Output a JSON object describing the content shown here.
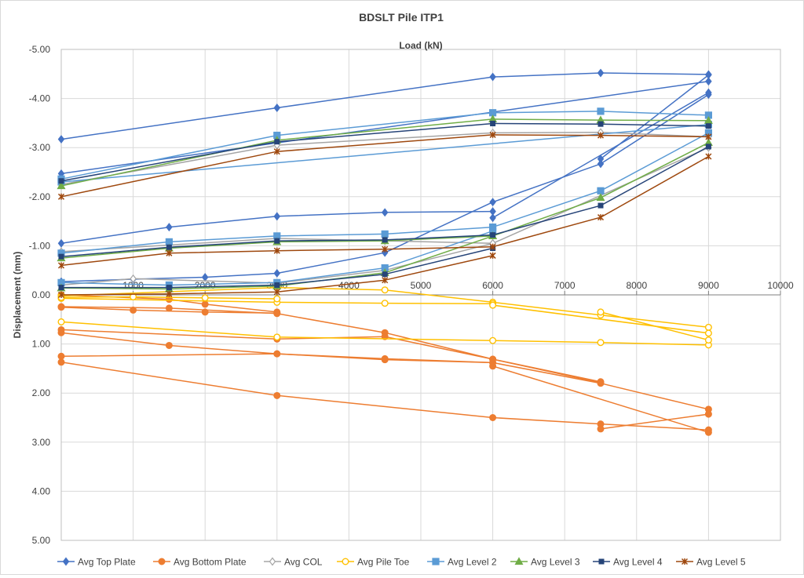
{
  "chart_data": {
    "type": "line",
    "title": "BDSLT Pile ITP1",
    "xlabel": "Load (kN)",
    "ylabel": "Displacement (mm)",
    "xlim": [
      0,
      10000
    ],
    "ylim": [
      5,
      -5
    ],
    "y_axis_reversed": true,
    "x_axis_position": "top, crossing at displacement 0",
    "x_ticks": [
      0,
      1000,
      2000,
      3000,
      4000,
      5000,
      6000,
      7000,
      8000,
      9000,
      10000
    ],
    "x_tick_labels": [
      "0",
      "1000",
      "2000",
      "3000",
      "4000",
      "5000",
      "6000",
      "7000",
      "8000",
      "9000",
      "10000"
    ],
    "y_ticks": [
      -5,
      -4,
      -3,
      -2,
      -1,
      0,
      1,
      2,
      3,
      4,
      5
    ],
    "y_tick_labels": [
      "-5.00",
      "-4.00",
      "-3.00",
      "-2.00",
      "-1.00",
      "0.00",
      "1.00",
      "2.00",
      "3.00",
      "4.00",
      "5.00"
    ],
    "grid": true,
    "legend_position": "bottom",
    "series": [
      {
        "name": "Avg Top Plate",
        "color": "#4472c4",
        "marker": "diamond",
        "filled": true,
        "lines": [
          {
            "x": [
              0,
              3000,
              6000,
              7500,
              9000
            ],
            "y": [
              -3.17,
              -3.81,
              -4.44,
              -4.52,
              -4.49
            ]
          },
          {
            "x": [
              0,
              1500,
              3000,
              4500,
              6000
            ],
            "y": [
              -1.05,
              -1.38,
              -1.6,
              -1.68,
              -1.7
            ]
          },
          {
            "x": [
              0,
              1000,
              2000,
              3000,
              4500,
              6000,
              7500,
              9000
            ],
            "y": [
              -0.27,
              -0.32,
              -0.36,
              -0.44,
              -0.86,
              -1.89,
              -2.67,
              -4.08
            ]
          },
          {
            "x": [
              0,
              9000
            ],
            "y": [
              -2.47,
              -4.35
            ]
          },
          {
            "x": [
              6000,
              9000
            ],
            "y": [
              -1.57,
              -4.12
            ]
          },
          {
            "x": [
              7500,
              9000
            ],
            "y": [
              -2.77,
              -4.48
            ]
          }
        ]
      },
      {
        "name": "Avg Bottom Plate",
        "color": "#ed7d31",
        "marker": "circle",
        "filled": true,
        "lines": [
          {
            "x": [
              0,
              3000,
              6000,
              7500,
              9000
            ],
            "y": [
              1.37,
              2.05,
              2.5,
              2.63,
              2.75
            ]
          },
          {
            "x": [
              0,
              3000,
              4500,
              6000,
              7500,
              9000
            ],
            "y": [
              1.25,
              1.2,
              1.3,
              1.38,
              1.8,
              2.33
            ]
          },
          {
            "x": [
              0,
              1500,
              3000,
              4500,
              6000
            ],
            "y": [
              0.77,
              1.03,
              1.2,
              1.32,
              1.38
            ]
          },
          {
            "x": [
              0,
              3000,
              4500,
              6000,
              7500
            ],
            "y": [
              0.71,
              0.9,
              0.85,
              1.31,
              1.77
            ]
          },
          {
            "x": [
              0,
              1500,
              3000,
              4500,
              6000,
              7500
            ],
            "y": [
              0.24,
              0.27,
              0.38,
              0.77,
              1.31,
              1.79
            ]
          },
          {
            "x": [
              0,
              1000,
              2000,
              3000
            ],
            "y": [
              0.25,
              0.31,
              0.35,
              0.37
            ]
          },
          {
            "x": [
              0,
              1500,
              2000,
              3000
            ],
            "y": [
              0.0,
              0.09,
              0.19,
              0.35
            ]
          },
          {
            "x": [
              6000,
              9000
            ],
            "y": [
              1.45,
              2.8
            ]
          },
          {
            "x": [
              7500,
              9000
            ],
            "y": [
              2.73,
              2.43
            ]
          }
        ]
      },
      {
        "name": "Avg COL",
        "color": "#a5a5a5",
        "marker": "diamond",
        "filled": false,
        "lines": [
          {
            "x": [
              0,
              3000,
              6000,
              7500,
              9000
            ],
            "y": [
              -2.25,
              -3.05,
              -3.3,
              -3.31,
              -3.22
            ]
          },
          {
            "x": [
              0,
              3000,
              4500,
              6000,
              9000
            ],
            "y": [
              -0.88,
              -1.15,
              -1.1,
              -1.05,
              -3.0
            ]
          },
          {
            "x": [
              0,
              1000,
              3000,
              4500,
              6000
            ],
            "y": [
              -0.2,
              -0.33,
              -0.24,
              -0.5,
              -1.05
            ]
          }
        ]
      },
      {
        "name": "Avg Pile Toe",
        "color": "#ffc000",
        "marker": "circle",
        "filled": false,
        "lines": [
          {
            "x": [
              0,
              3000,
              6000,
              7500,
              9000
            ],
            "y": [
              0.55,
              0.86,
              0.93,
              0.97,
              1.02
            ]
          },
          {
            "x": [
              0,
              3000,
              4500,
              6000,
              7500,
              9000
            ],
            "y": [
              0.02,
              -0.15,
              -0.1,
              0.15,
              0.41,
              0.66
            ]
          },
          {
            "x": [
              0,
              3000,
              4500,
              6000
            ],
            "y": [
              0.07,
              0.15,
              0.17,
              0.18
            ]
          },
          {
            "x": [
              0,
              1000,
              2000,
              3000
            ],
            "y": [
              0.05,
              0.04,
              0.06,
              0.08
            ]
          },
          {
            "x": [
              7500,
              9000
            ],
            "y": [
              0.35,
              0.92
            ]
          },
          {
            "x": [
              6000,
              9000
            ],
            "y": [
              0.21,
              0.78
            ]
          }
        ]
      },
      {
        "name": "Avg Level 2",
        "color": "#5b9bd5",
        "marker": "square",
        "filled": true,
        "lines": [
          {
            "x": [
              0,
              3000,
              6000,
              7500,
              9000
            ],
            "y": [
              -2.36,
              -3.25,
              -3.71,
              -3.74,
              -3.66
            ]
          },
          {
            "x": [
              0,
              1500,
              3000,
              4500,
              6000,
              7500,
              9000
            ],
            "y": [
              -0.85,
              -1.08,
              -1.2,
              -1.24,
              -1.38,
              -2.12,
              -3.3
            ]
          },
          {
            "x": [
              0,
              1500,
              3000,
              4500,
              6000
            ],
            "y": [
              -0.25,
              -0.2,
              -0.25,
              -0.55,
              -1.3
            ]
          },
          {
            "x": [
              0,
              9000
            ],
            "y": [
              -2.3,
              -3.47
            ]
          }
        ]
      },
      {
        "name": "Avg Level 3",
        "color": "#70ad47",
        "marker": "triangle",
        "filled": true,
        "lines": [
          {
            "x": [
              0,
              3000,
              6000,
              7500,
              9000
            ],
            "y": [
              -2.22,
              -3.15,
              -3.58,
              -3.56,
              -3.55
            ]
          },
          {
            "x": [
              0,
              1500,
              3000,
              4500,
              6000,
              7500,
              9000
            ],
            "y": [
              -0.75,
              -0.95,
              -1.08,
              -1.1,
              -1.2,
              -1.98,
              -3.1
            ]
          },
          {
            "x": [
              0,
              1500,
              3000,
              4500,
              6000
            ],
            "y": [
              -0.14,
              -0.12,
              -0.18,
              -0.45,
              -1.2
            ]
          }
        ]
      },
      {
        "name": "Avg Level 4",
        "color": "#264478",
        "marker": "dash",
        "filled": true,
        "lines": [
          {
            "x": [
              0,
              3000,
              6000,
              7500,
              9000
            ],
            "y": [
              -2.32,
              -3.12,
              -3.49,
              -3.48,
              -3.44
            ]
          },
          {
            "x": [
              0,
              1500,
              3000,
              4500,
              6000,
              7500,
              9000
            ],
            "y": [
              -0.78,
              -0.97,
              -1.1,
              -1.12,
              -1.22,
              -1.82,
              -3.02
            ]
          },
          {
            "x": [
              0,
              1500,
              3000,
              4500,
              6000
            ],
            "y": [
              -0.15,
              -0.15,
              -0.2,
              -0.42,
              -0.95
            ]
          }
        ]
      },
      {
        "name": "Avg Level 5",
        "color": "#9e480e",
        "marker": "star",
        "filled": false,
        "lines": [
          {
            "x": [
              0,
              3000,
              6000,
              7500,
              9000
            ],
            "y": [
              -2.0,
              -2.92,
              -3.26,
              -3.25,
              -3.22
            ]
          },
          {
            "x": [
              0,
              1500,
              3000,
              4500,
              6000,
              7500,
              9000
            ],
            "y": [
              -0.6,
              -0.85,
              -0.9,
              -0.93,
              -0.98,
              -1.58,
              -2.82
            ]
          },
          {
            "x": [
              0,
              1500,
              3000,
              4500,
              6000
            ],
            "y": [
              0.0,
              -0.02,
              -0.06,
              -0.3,
              -0.8
            ]
          }
        ]
      }
    ]
  }
}
